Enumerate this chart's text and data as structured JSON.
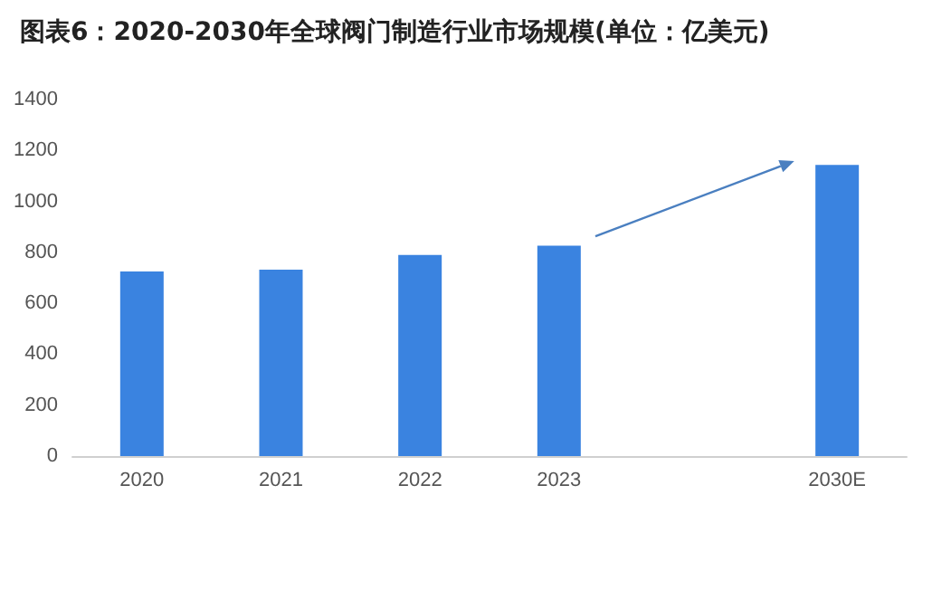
{
  "chart_data": {
    "type": "bar",
    "title": "图表6：2020-2030年全球阀门制造行业市场规模(单位：亿美元)",
    "categories": [
      "2020",
      "2021",
      "2022",
      "2023",
      null,
      "2030E"
    ],
    "values": [
      725,
      732,
      790,
      826,
      null,
      1143
    ],
    "color": "#3a83e0",
    "ylim": [
      0,
      1400
    ],
    "yticks": [
      0,
      200,
      400,
      600,
      800,
      1000,
      1200,
      1400
    ],
    "grid": false
  }
}
